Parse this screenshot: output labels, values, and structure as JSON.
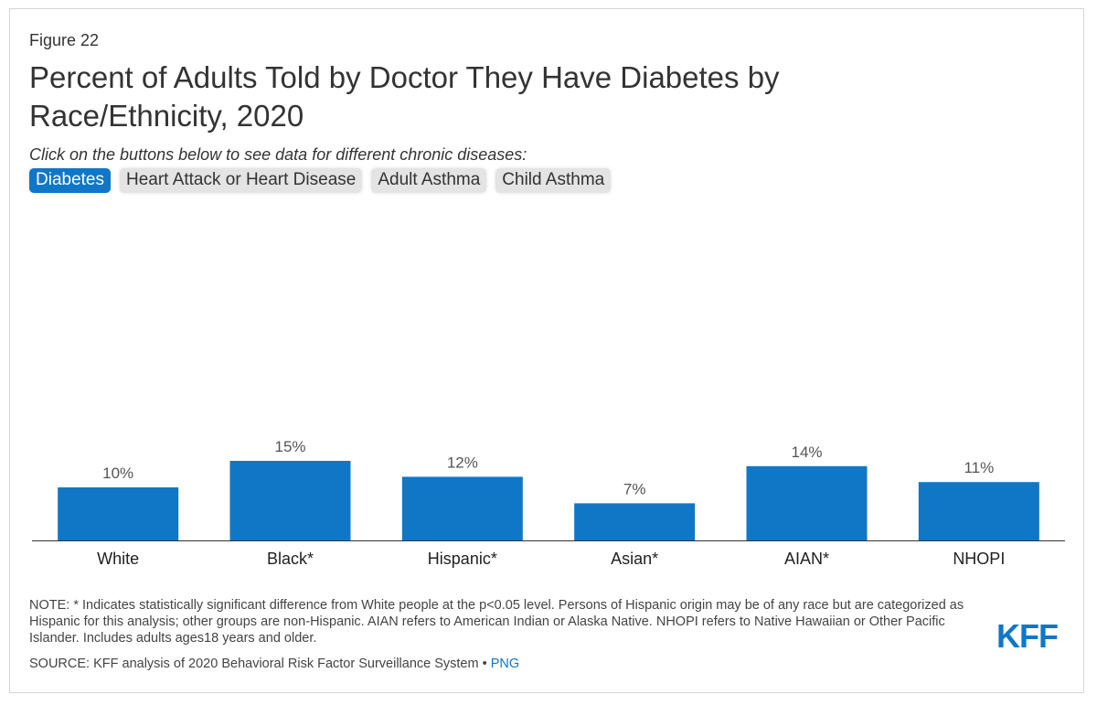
{
  "figure_label": "Figure 22",
  "title": "Percent of Adults Told by Doctor They Have Diabetes by Race/Ethnicity, 2020",
  "instruction": "Click on the buttons below to see data for different chronic diseases:",
  "buttons": [
    {
      "label": "Diabetes",
      "active": true
    },
    {
      "label": "Heart Attack or Heart Disease",
      "active": false
    },
    {
      "label": "Adult Asthma",
      "active": false
    },
    {
      "label": "Child Asthma",
      "active": false
    }
  ],
  "chart_data": {
    "type": "bar",
    "categories": [
      "White",
      "Black*",
      "Hispanic*",
      "Asian*",
      "AIAN*",
      "NHOPI"
    ],
    "values": [
      10,
      15,
      12,
      7,
      14,
      11
    ],
    "data_labels": [
      "10%",
      "15%",
      "12%",
      "7%",
      "14%",
      "11%"
    ],
    "title": "Percent of Adults Told by Doctor They Have Diabetes by Race/Ethnicity, 2020",
    "xlabel": "",
    "ylabel": "",
    "ylim": [
      0,
      50
    ],
    "grid": false,
    "legend": "none",
    "bar_color": "#1077c7"
  },
  "note": "NOTE: * Indicates statistically significant difference from White people at the p<0.05 level. Persons of Hispanic origin may be of any race but are categorized as Hispanic for this analysis; other groups are non-Hispanic. AIAN refers to American Indian or Alaska Native. NHOPI refers to Native Hawaiian or Other Pacific Islander. Includes adults ages18 years and older.",
  "source": "SOURCE: KFF analysis of 2020 Behavioral Risk Factor Surveillance System •",
  "source_link": "PNG",
  "logo": "KFF"
}
